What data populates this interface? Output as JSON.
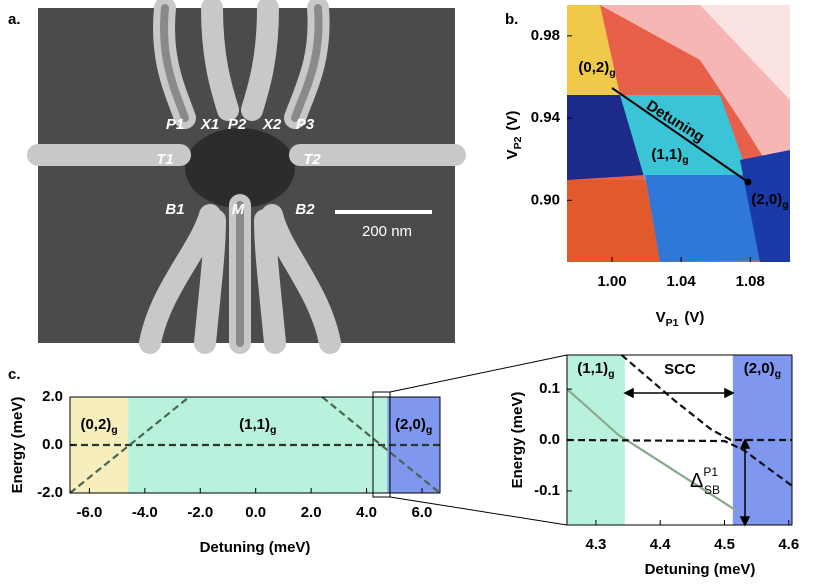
{
  "panel_labels": [
    "a.",
    "b.",
    "c."
  ],
  "sem": {
    "gate_labels": [
      "P1",
      "X1",
      "P2",
      "X2",
      "P3",
      "T1",
      "T2",
      "B1",
      "M",
      "B2"
    ],
    "scale_bar": "200 nm"
  },
  "chart_data": [
    {
      "type": "heatmap",
      "xlabel": {
        "text": "V",
        "sub": "P1",
        "unit": "(V)"
      },
      "ylabel": {
        "text": "V",
        "sub": "P2",
        "unit": "(V)"
      },
      "xlim": [
        0.974,
        1.103
      ],
      "ylim": [
        0.87,
        0.995
      ],
      "xticks": [
        {
          "value": 1,
          "label": "1.00"
        },
        {
          "value": 1.04,
          "label": "1.04"
        },
        {
          "value": 1.08,
          "label": "1.08"
        }
      ],
      "yticks": [
        {
          "value": 0.9,
          "label": "0.90"
        },
        {
          "value": 0.94,
          "label": "0.94"
        },
        {
          "value": 0.98,
          "label": "0.98"
        }
      ],
      "annotations": [
        {
          "text": "(0,2)",
          "sub": "g"
        },
        {
          "text": "Detuning"
        },
        {
          "text": "(1,1)",
          "sub": "g"
        },
        {
          "text": "(2,0)",
          "sub": "g"
        }
      ]
    },
    {
      "type": "line",
      "xlabel": "Detuning (meV)",
      "ylabel": "Energy (meV)",
      "xlim": [
        -6.7,
        6.65
      ],
      "ylim": [
        -2,
        2
      ],
      "xticks": [
        {
          "value": -6,
          "label": "-6.0"
        },
        {
          "value": -4,
          "label": "-4.0"
        },
        {
          "value": -2,
          "label": "-2.0"
        },
        {
          "value": 0,
          "label": "0.0"
        },
        {
          "value": 2,
          "label": "2.0"
        },
        {
          "value": 4,
          "label": "4.0"
        },
        {
          "value": 6,
          "label": "6.0"
        }
      ],
      "yticks": [
        {
          "value": -2,
          "label": "-2.0"
        },
        {
          "value": 0,
          "label": "0.0"
        },
        {
          "value": 2,
          "label": "2.0"
        }
      ],
      "regions": [
        {
          "label": {
            "text": "(0,2)",
            "sub": "g"
          },
          "from": -6.7,
          "to": -4.6,
          "color": "#f6efbd"
        },
        {
          "label": {
            "text": "(1,1)",
            "sub": "g"
          },
          "from": -4.6,
          "to": 4.75,
          "color": "#b8f2dc"
        },
        {
          "label": {
            "text": "(2,0)",
            "sub": "g"
          },
          "from": 4.75,
          "to": 6.65,
          "color": "#7f97ee"
        }
      ],
      "series": [
        {
          "color": "#2b3a30",
          "style": "dashed",
          "x": [
            -6.7,
            6.65
          ],
          "values": [
            0,
            0
          ]
        },
        {
          "color": "#4c6452",
          "style": "dashed",
          "x": [
            -6.7,
            -2.4
          ],
          "values": [
            -2,
            2
          ]
        },
        {
          "color": "#4c6452",
          "style": "dashed",
          "x": [
            2.4,
            6.65
          ],
          "values": [
            2,
            -2
          ]
        }
      ]
    },
    {
      "type": "line",
      "xlabel": "Detuning (meV)",
      "ylabel": "Energy (meV)",
      "xlim": [
        4.255,
        4.605
      ],
      "ylim": [
        -0.167,
        0.167
      ],
      "xticks": [
        4.3,
        4.4,
        4.5,
        4.6
      ],
      "yticks": [
        -0.1,
        {
          "value": 0,
          "label": "0.0"
        },
        0.1
      ],
      "regions": [
        {
          "label": {
            "text": "(1,1)",
            "sub": "g"
          },
          "from": 4.255,
          "to": 4.345,
          "color": "#b8f2dc"
        },
        {
          "label": {
            "text": "(2,0)",
            "sub": "g"
          },
          "from": 4.513,
          "to": 4.605,
          "color": "#7f97ee"
        }
      ],
      "series": [
        {
          "color": "#8aa88a",
          "style": "solid",
          "x": [
            4.255,
            4.335,
            4.36,
            4.52
          ],
          "values": [
            0.1,
            0.01,
            -0.01,
            -0.14
          ]
        },
        {
          "color": "#111111",
          "style": "dashed",
          "x": [
            4.34,
            4.42,
            4.48,
            4.51,
            4.605
          ],
          "values": [
            0.167,
            0.08,
            0.02,
            0.0,
            0
          ]
        },
        {
          "color": "#111111",
          "style": "dashed",
          "x": [
            4.255,
            4.5,
            4.53,
            4.605
          ],
          "values": [
            0,
            -0.002,
            -0.02,
            -0.09
          ]
        }
      ],
      "annotations": [
        {
          "text": "SCC"
        },
        {
          "symbol": "Δ",
          "sub": "SB",
          "sup": "P1"
        }
      ]
    }
  ]
}
